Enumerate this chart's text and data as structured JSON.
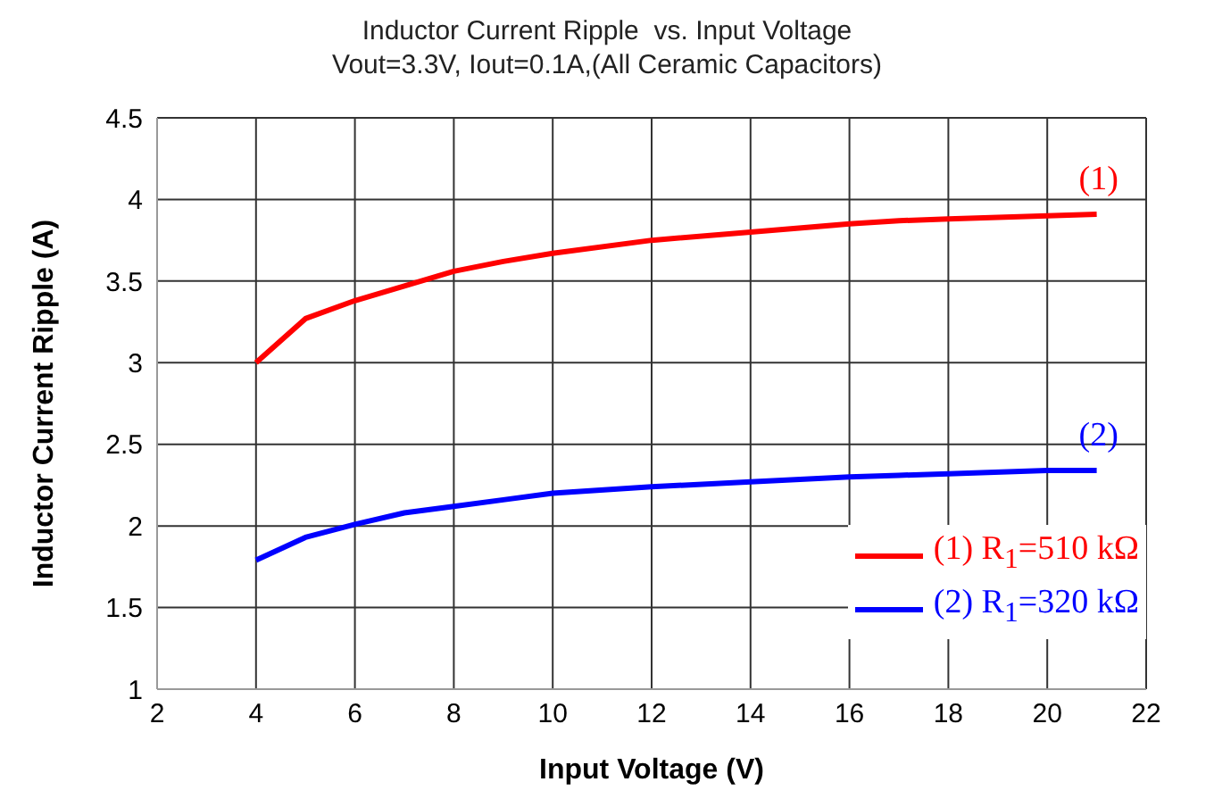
{
  "chart_data": {
    "type": "line",
    "title": "Inductor Current Ripple  vs. Input Voltage",
    "subtitle": "Vout=3.3V, Iout=0.1A,(All Ceramic Capacitors)",
    "xlabel": "Input Voltage (V)",
    "ylabel": "Inductor Current Ripple (A)",
    "x": [
      4,
      5,
      6,
      7,
      8,
      9,
      10,
      12,
      14,
      16,
      17,
      18,
      20,
      21
    ],
    "series": [
      {
        "name": "(1) R$_{1}$=510 kΩ",
        "color": "#ff0000",
        "values": [
          3.0,
          3.27,
          3.38,
          3.47,
          3.56,
          3.62,
          3.67,
          3.75,
          3.8,
          3.85,
          3.87,
          3.88,
          3.9,
          3.91
        ]
      },
      {
        "name": "(2) R$_{1}$=320 kΩ",
        "color": "#0000ff",
        "values": [
          1.79,
          1.93,
          2.01,
          2.08,
          2.12,
          2.16,
          2.2,
          2.24,
          2.27,
          2.3,
          2.31,
          2.32,
          2.34,
          2.34
        ]
      }
    ],
    "annotations": [
      {
        "text": "(1)",
        "x": 21,
        "y": 3.91
      },
      {
        "text": "(2)",
        "x": 21,
        "y": 2.34
      }
    ],
    "xlim": [
      2,
      22
    ],
    "xticks": [
      2,
      4,
      6,
      8,
      10,
      12,
      14,
      16,
      18,
      20,
      22
    ],
    "ylim": [
      1,
      4.5
    ],
    "yticks": [
      1,
      1.5,
      2,
      2.5,
      3,
      3.5,
      4,
      4.5
    ],
    "grid": true,
    "legend": "bottom right",
    "marker": "none",
    "line_style": "solid"
  }
}
